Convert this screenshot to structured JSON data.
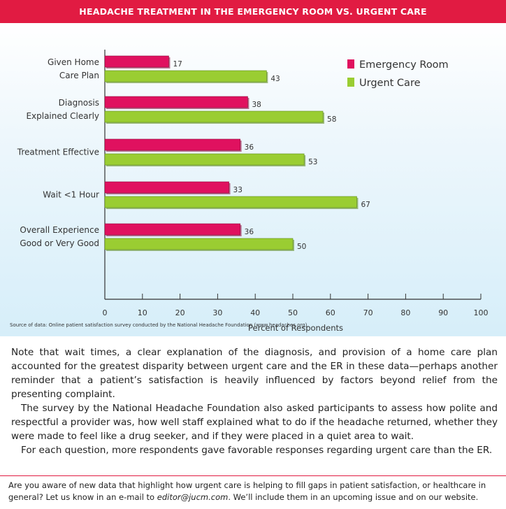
{
  "header": {
    "title": "HEADACHE TREATMENT IN THE EMERGENCY ROOM VS. URGENT CARE"
  },
  "colors": {
    "accent": "#e11b42",
    "emergency": "#e0115f",
    "urgent": "#9acd32"
  },
  "chart_data": {
    "type": "bar",
    "orientation": "horizontal",
    "categories": [
      [
        "Given Home",
        "Care Plan"
      ],
      [
        "Diagnosis",
        "Explained Clearly"
      ],
      [
        "Treatment Effective"
      ],
      [
        "Wait <1 Hour"
      ],
      [
        "Overall Experience",
        "Good or Very Good"
      ]
    ],
    "series": [
      {
        "name": "Emergency Room",
        "values": [
          17,
          38,
          36,
          33,
          36
        ]
      },
      {
        "name": "Urgent Care",
        "values": [
          43,
          58,
          53,
          67,
          50
        ]
      }
    ],
    "xlabel": "Percent of Respondents",
    "xlim": [
      0,
      100
    ],
    "xticks": [
      "0",
      "10",
      "20",
      "30",
      "40",
      "50",
      "60",
      "70",
      "80",
      "90",
      "100"
    ],
    "legend": "top-right",
    "data_labels": true
  },
  "source": "Source of data: Online patient satisfaction survey conducted by the National Headache Foundation (www.headaches.org).",
  "body": {
    "p1": "Note that wait times, a clear explanation of the diagnosis, and provision of a home care plan accounted for the greatest disparity between urgent care and the ER in these data—perhaps another reminder that a patient’s satisfaction is heavily influenced by factors beyond relief from the presenting complaint.",
    "p2": "The survey by the National Headache Foundation also asked participants to assess how polite and respectful a provider was, how well staff explained what to do if the headache returned, whether they were made to feel like a drug seeker, and if they were placed in a quiet area to wait.",
    "p3": "For each question, more respondents gave favorable responses regarding urgent care than the ER."
  },
  "footer": {
    "text_before": "Are you aware of new data that highlight how urgent care is helping to fill gaps in patient satisfaction, or healthcare in general? Let us know in an e-mail to ",
    "email": "editor@jucm.com",
    "text_after": ". We’ll include them in an upcoming issue and on our website."
  }
}
